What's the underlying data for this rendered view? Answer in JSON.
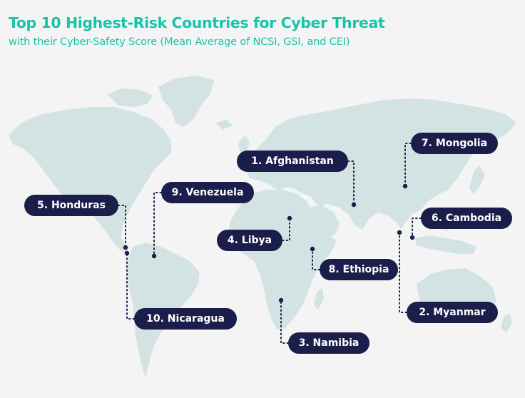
{
  "header": {
    "title": "Top 10 Highest-Risk Countries for Cyber Threat",
    "subtitle": "with their Cyber-Safety Score (Mean Average of NCSI, GSI, and CEI)"
  },
  "colors": {
    "accent": "#18c4a8",
    "label_background": "#1b1e4b",
    "land": "#d3e3e4",
    "background": "#f4f4f4"
  },
  "countries": [
    {
      "rank": 1,
      "label": "1. Afghanistan"
    },
    {
      "rank": 2,
      "label": "2. Myanmar"
    },
    {
      "rank": 3,
      "label": "3. Namibia"
    },
    {
      "rank": 4,
      "label": "4. Libya"
    },
    {
      "rank": 5,
      "label": "5. Honduras"
    },
    {
      "rank": 6,
      "label": "6. Cambodia"
    },
    {
      "rank": 7,
      "label": "7. Mongolia"
    },
    {
      "rank": 8,
      "label": "8. Ethiopia"
    },
    {
      "rank": 9,
      "label": "9. Venezuela"
    },
    {
      "rank": 10,
      "label": "10. Nicaragua"
    }
  ]
}
